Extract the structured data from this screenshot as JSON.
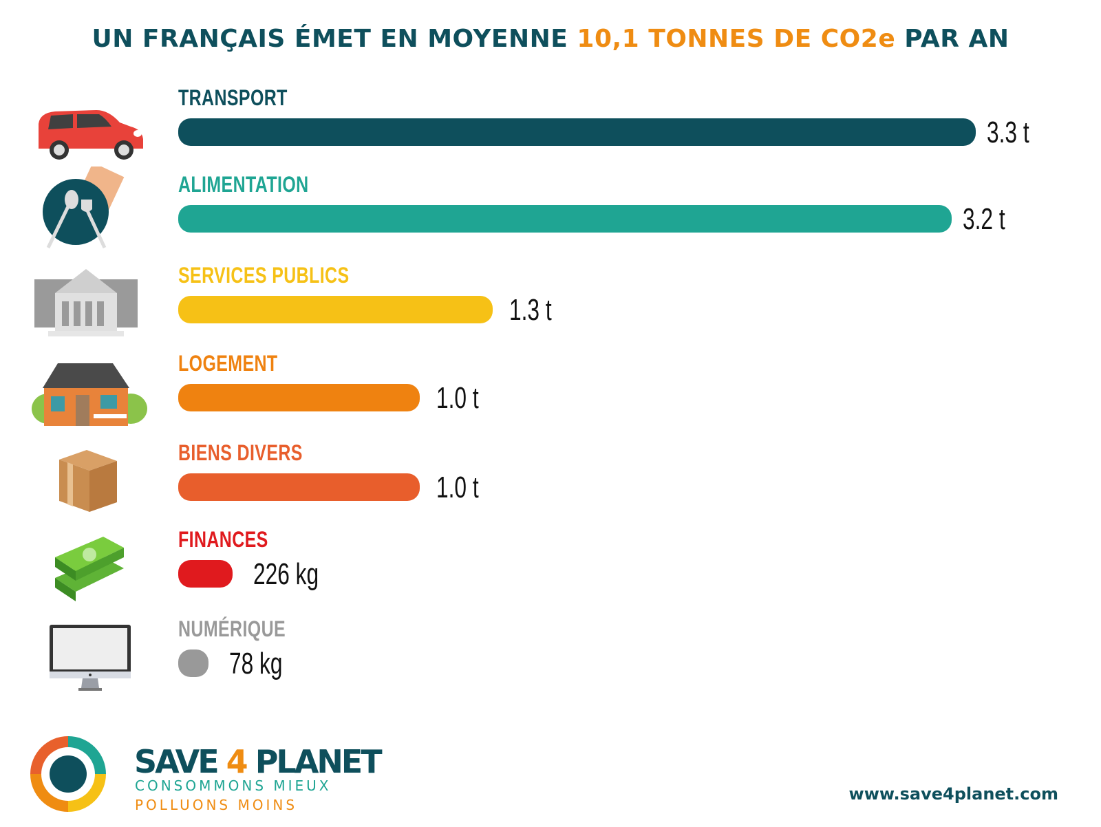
{
  "title": {
    "part1": "UN FRANÇAIS ÉMET EN MOYENNE ",
    "highlight": "10,1 TONNES DE CO2e",
    "part2": " PAR AN",
    "color_main": "#0e4f5c",
    "color_highlight": "#ef8c12"
  },
  "chart_data": {
    "type": "bar",
    "orientation": "horizontal",
    "title": "UN FRANÇAIS ÉMET EN MOYENNE 10,1 TONNES DE CO2e PAR AN",
    "unit": "t CO2e",
    "categories": [
      "TRANSPORT",
      "ALIMENTATION",
      "SERVICES PUBLICS",
      "LOGEMENT",
      "BIENS DIVERS",
      "FINANCES",
      "NUMÉRIQUE"
    ],
    "values": [
      3.3,
      3.2,
      1.3,
      1.0,
      1.0,
      0.226,
      0.078
    ],
    "value_labels": [
      "3.3 t",
      "3.2 t",
      "1.3 t",
      "1.0 t",
      "1.0 t",
      "226 kg",
      "78 kg"
    ],
    "colors": [
      "#0e4f5c",
      "#1fa593",
      "#f6c116",
      "#ef8210",
      "#e85e2c",
      "#e01a1e",
      "#999999"
    ],
    "icons": [
      "car-icon",
      "plate-cutlery-icon",
      "public-building-icon",
      "house-icon",
      "cardboard-box-icon",
      "banknotes-icon",
      "computer-monitor-icon"
    ],
    "xlim": [
      0,
      3.4
    ],
    "grid": false,
    "legend": "none"
  },
  "footer": {
    "brand_part1": "SAVE",
    "brand_four": "4",
    "brand_part2": "PLANET",
    "tagline1": "CONSOMMONS MIEUX",
    "tagline2": "POLLUONS MOINS",
    "url": "www.save4planet.com"
  }
}
